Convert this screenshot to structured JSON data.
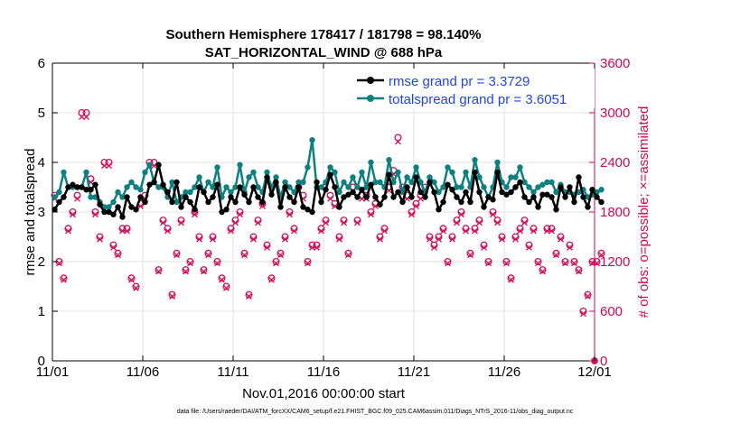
{
  "chart_data": {
    "type": "line",
    "title": "Southern Hemisphere 178417 / 181798 = 98.140%",
    "subtitle": "SAT_HORIZONTAL_WIND @ 688 hPa",
    "xlabel": "Nov.01,2016 00:00:00 start",
    "ylabel": "rmse and totalspread",
    "ylabel_right": "# of obs: o=possible; ×=assimilated",
    "footnote": "data file: /Users/raeder/DAI/ATM_forcXX/CAM6_setup/f.e21.FHIST_BGC.f09_025.CAM6assim.011/Diags_NTrS_2016-11/obs_diag_output.nc",
    "x_tick_labels": [
      "11/01",
      "11/06",
      "11/11",
      "11/16",
      "11/21",
      "11/26",
      "12/01"
    ],
    "x_tick_days": [
      0,
      5,
      10,
      15,
      20,
      25,
      30
    ],
    "xlim_days": [
      0,
      30
    ],
    "ylim": [
      0,
      6
    ],
    "y_ticks": [
      0,
      1,
      2,
      3,
      4,
      5,
      6
    ],
    "y2lim": [
      0,
      3600
    ],
    "y2_ticks": [
      0,
      600,
      1200,
      1800,
      2400,
      3000,
      3600
    ],
    "grid": true,
    "legend_position": "top-right",
    "colors": {
      "rmse": "#000000",
      "spread": "#0f8080",
      "obs": "#d1105a",
      "legend_text": "#1e46e6",
      "right_axis": "#cc0a52"
    },
    "series": [
      {
        "name": "rmse grand pr = 3.3729",
        "marker": "circle",
        "x_start_day": 0.125,
        "x_step_days": 0.25,
        "values": [
          3.05,
          3.2,
          3.3,
          3.5,
          3.55,
          3.5,
          3.5,
          3.45,
          3.45,
          3.55,
          3.15,
          3.0,
          3.0,
          2.95,
          3.1,
          2.9,
          3.3,
          3.1,
          3.05,
          3.3,
          3.2,
          3.55,
          3.6,
          3.95,
          3.55,
          3.4,
          3.2,
          3.6,
          3.1,
          3.3,
          3.2,
          3.05,
          3.5,
          3.4,
          3.2,
          3.3,
          3.55,
          3.0,
          3.05,
          3.3,
          3.2,
          3.5,
          3.35,
          3.2,
          3.5,
          3.3,
          3.2,
          3.7,
          3.35,
          3.6,
          3.1,
          3.5,
          3.3,
          3.2,
          3.5,
          3.1,
          3.05,
          3.0,
          3.6,
          3.2,
          3.45,
          3.75,
          3.5,
          3.1,
          3.3,
          3.35,
          3.4,
          3.3,
          3.45,
          3.3,
          3.55,
          3.3,
          3.15,
          3.3,
          3.75,
          3.3,
          3.4,
          3.2,
          3.5,
          3.3,
          3.7,
          3.4,
          3.3,
          3.6,
          3.4,
          3.05,
          3.2,
          3.55,
          3.45,
          3.3,
          3.2,
          3.4,
          3.2,
          3.8,
          3.4,
          3.1,
          3.3,
          3.25,
          3.8,
          3.4,
          3.35,
          3.4,
          3.5,
          3.6,
          3.3,
          3.2,
          3.3,
          3.1,
          3.35,
          3.35,
          3.3,
          3.05,
          3.5,
          3.3,
          3.5,
          3.2,
          3.7,
          3.3,
          3.1,
          3.45,
          3.3,
          3.2
        ]
      },
      {
        "name": "totalspread grand pr = 3.6051",
        "marker": "circle",
        "x_start_day": 0.125,
        "x_step_days": 0.25,
        "values": [
          3.3,
          3.4,
          3.8,
          3.5,
          3.5,
          3.5,
          3.5,
          3.8,
          3.3,
          3.3,
          3.2,
          3.1,
          3.1,
          3.2,
          3.4,
          3.3,
          3.5,
          3.6,
          3.5,
          3.45,
          3.8,
          3.95,
          3.6,
          3.5,
          3.5,
          3.3,
          3.6,
          3.2,
          3.3,
          3.4,
          3.4,
          3.5,
          3.7,
          3.4,
          3.6,
          3.5,
          3.9,
          3.3,
          3.5,
          3.4,
          3.5,
          3.95,
          3.4,
          3.7,
          3.8,
          3.5,
          3.4,
          3.8,
          3.5,
          3.7,
          3.3,
          3.6,
          3.5,
          3.4,
          3.6,
          3.6,
          3.9,
          4.45,
          3.5,
          3.5,
          3.6,
          3.9,
          3.8,
          3.4,
          3.6,
          3.5,
          3.7,
          3.5,
          3.8,
          3.5,
          4.0,
          3.6,
          3.6,
          3.5,
          4.05,
          3.6,
          3.8,
          3.4,
          3.7,
          3.6,
          3.9,
          3.6,
          3.4,
          3.7,
          3.6,
          3.4,
          3.5,
          3.9,
          3.8,
          3.5,
          3.5,
          3.8,
          3.5,
          4.05,
          3.7,
          3.5,
          3.3,
          3.5,
          4.0,
          3.6,
          3.5,
          3.7,
          3.7,
          3.9,
          3.6,
          3.5,
          3.4,
          3.5,
          3.55,
          3.6,
          3.6,
          3.4,
          3.55,
          3.4,
          3.4,
          3.35,
          3.4,
          3.45,
          3.3,
          3.35,
          3.4,
          3.45
        ]
      },
      {
        "name": "# of obs possible",
        "axis": "right",
        "marker": "circle-open",
        "x_start_day": 0.125,
        "x_step_days": 0.25,
        "values": [
          2000,
          1200,
          1000,
          1600,
          1800,
          2000,
          3000,
          3000,
          2200,
          1800,
          1500,
          2400,
          2400,
          1400,
          1300,
          1600,
          1600,
          1000,
          900,
          1900,
          2000,
          2400,
          2400,
          1100,
          1700,
          1600,
          800,
          1300,
          1700,
          1100,
          1200,
          1800,
          1500,
          1100,
          1300,
          1500,
          1200,
          1000,
          900,
          1600,
          1700,
          1800,
          1300,
          800,
          1500,
          1700,
          1900,
          1400,
          1000,
          1200,
          1300,
          1500,
          1800,
          1600,
          2100,
          2000,
          1200,
          1400,
          1400,
          1600,
          1700,
          2000,
          1900,
          1500,
          1700,
          1300,
          2100,
          1700,
          2000,
          2000,
          1800,
          1900,
          1500,
          1600,
          2100,
          2300,
          2700,
          2100,
          2000,
          1800,
          1900,
          2000,
          2100,
          1500,
          1400,
          1500,
          1600,
          1200,
          1500,
          1700,
          1800,
          1600,
          1300,
          1600,
          1700,
          1400,
          1200,
          1800,
          1700,
          1500,
          1200,
          1000,
          1500,
          1600,
          1700,
          1400,
          1600,
          1200,
          1100,
          1600,
          1600,
          1300,
          1500,
          1200,
          1400,
          1200,
          1100,
          600,
          800,
          1200,
          1200,
          1300
        ]
      },
      {
        "name": "# of obs assimilated",
        "axis": "right",
        "marker": "x",
        "x_start_day": 0.125,
        "x_step_days": 0.25,
        "values": [
          1960,
          1180,
          980,
          1570,
          1770,
          1960,
          2950,
          2950,
          2160,
          1770,
          1470,
          2360,
          2360,
          1370,
          1280,
          1570,
          1570,
          980,
          880,
          1870,
          1960,
          2360,
          2360,
          1080,
          1670,
          1570,
          780,
          1280,
          1670,
          1080,
          1180,
          1770,
          1470,
          1080,
          1280,
          1470,
          1180,
          980,
          880,
          1570,
          1670,
          1770,
          1280,
          780,
          1470,
          1670,
          1870,
          1370,
          980,
          1180,
          1280,
          1470,
          1770,
          1570,
          2060,
          1960,
          1180,
          1370,
          1370,
          1570,
          1670,
          1960,
          1870,
          1470,
          1670,
          1280,
          2060,
          1670,
          1960,
          1960,
          1770,
          1870,
          1470,
          1570,
          2060,
          2260,
          2650,
          2060,
          1960,
          1770,
          1870,
          1960,
          2060,
          1470,
          1370,
          1470,
          1570,
          1180,
          1470,
          1670,
          1770,
          1570,
          1280,
          1570,
          1670,
          1370,
          1180,
          1770,
          1670,
          1470,
          1180,
          980,
          1470,
          1570,
          1670,
          1370,
          1570,
          1180,
          1080,
          1570,
          1570,
          1280,
          1470,
          1180,
          1370,
          1180,
          1080,
          570,
          780,
          1180,
          1180,
          1280
        ]
      }
    ]
  }
}
